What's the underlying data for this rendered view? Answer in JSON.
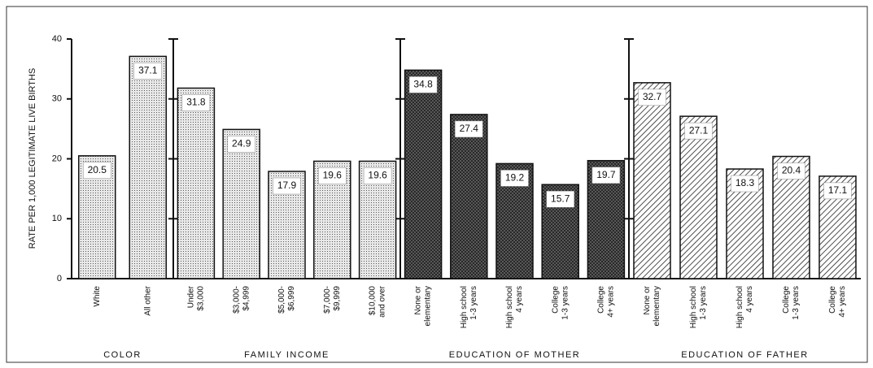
{
  "chart_data": {
    "type": "bar",
    "ylabel": "RATE PER 1,000 LEGITIMATE LIVE BIRTHS",
    "ylim": [
      0,
      40
    ],
    "yticks": [
      0,
      10,
      20,
      30,
      40
    ],
    "groups": [
      {
        "name": "COLOR",
        "pattern": "dots",
        "categories": [
          [
            "White"
          ],
          [
            "All other"
          ]
        ],
        "values": [
          20.5,
          37.1
        ]
      },
      {
        "name": "FAMILY INCOME",
        "pattern": "dots",
        "categories": [
          [
            "Under",
            "$3,000"
          ],
          [
            "$3,000-",
            "$4,999"
          ],
          [
            "$5,000-",
            "$6,999"
          ],
          [
            "$7,000-",
            "$9,999"
          ],
          [
            "$10,000",
            "and over"
          ]
        ],
        "values": [
          31.8,
          24.9,
          17.9,
          19.6,
          19.6
        ]
      },
      {
        "name": "EDUCATION OF MOTHER",
        "pattern": "crosshatch",
        "categories": [
          [
            "None or",
            "elementary"
          ],
          [
            "High school",
            "1-3 years"
          ],
          [
            "High school",
            "4 years"
          ],
          [
            "College",
            "1-3 years"
          ],
          [
            "College",
            "4+ years"
          ]
        ],
        "values": [
          34.8,
          27.4,
          19.2,
          15.7,
          19.7
        ]
      },
      {
        "name": "EDUCATION OF FATHER",
        "pattern": "hatch",
        "categories": [
          [
            "None or",
            "elementary"
          ],
          [
            "High school",
            "1-3 years"
          ],
          [
            "High school",
            "4 years"
          ],
          [
            "College",
            "1-3 years"
          ],
          [
            "College",
            "4+ years"
          ]
        ],
        "values": [
          32.7,
          27.1,
          18.3,
          20.4,
          17.1
        ]
      }
    ]
  }
}
